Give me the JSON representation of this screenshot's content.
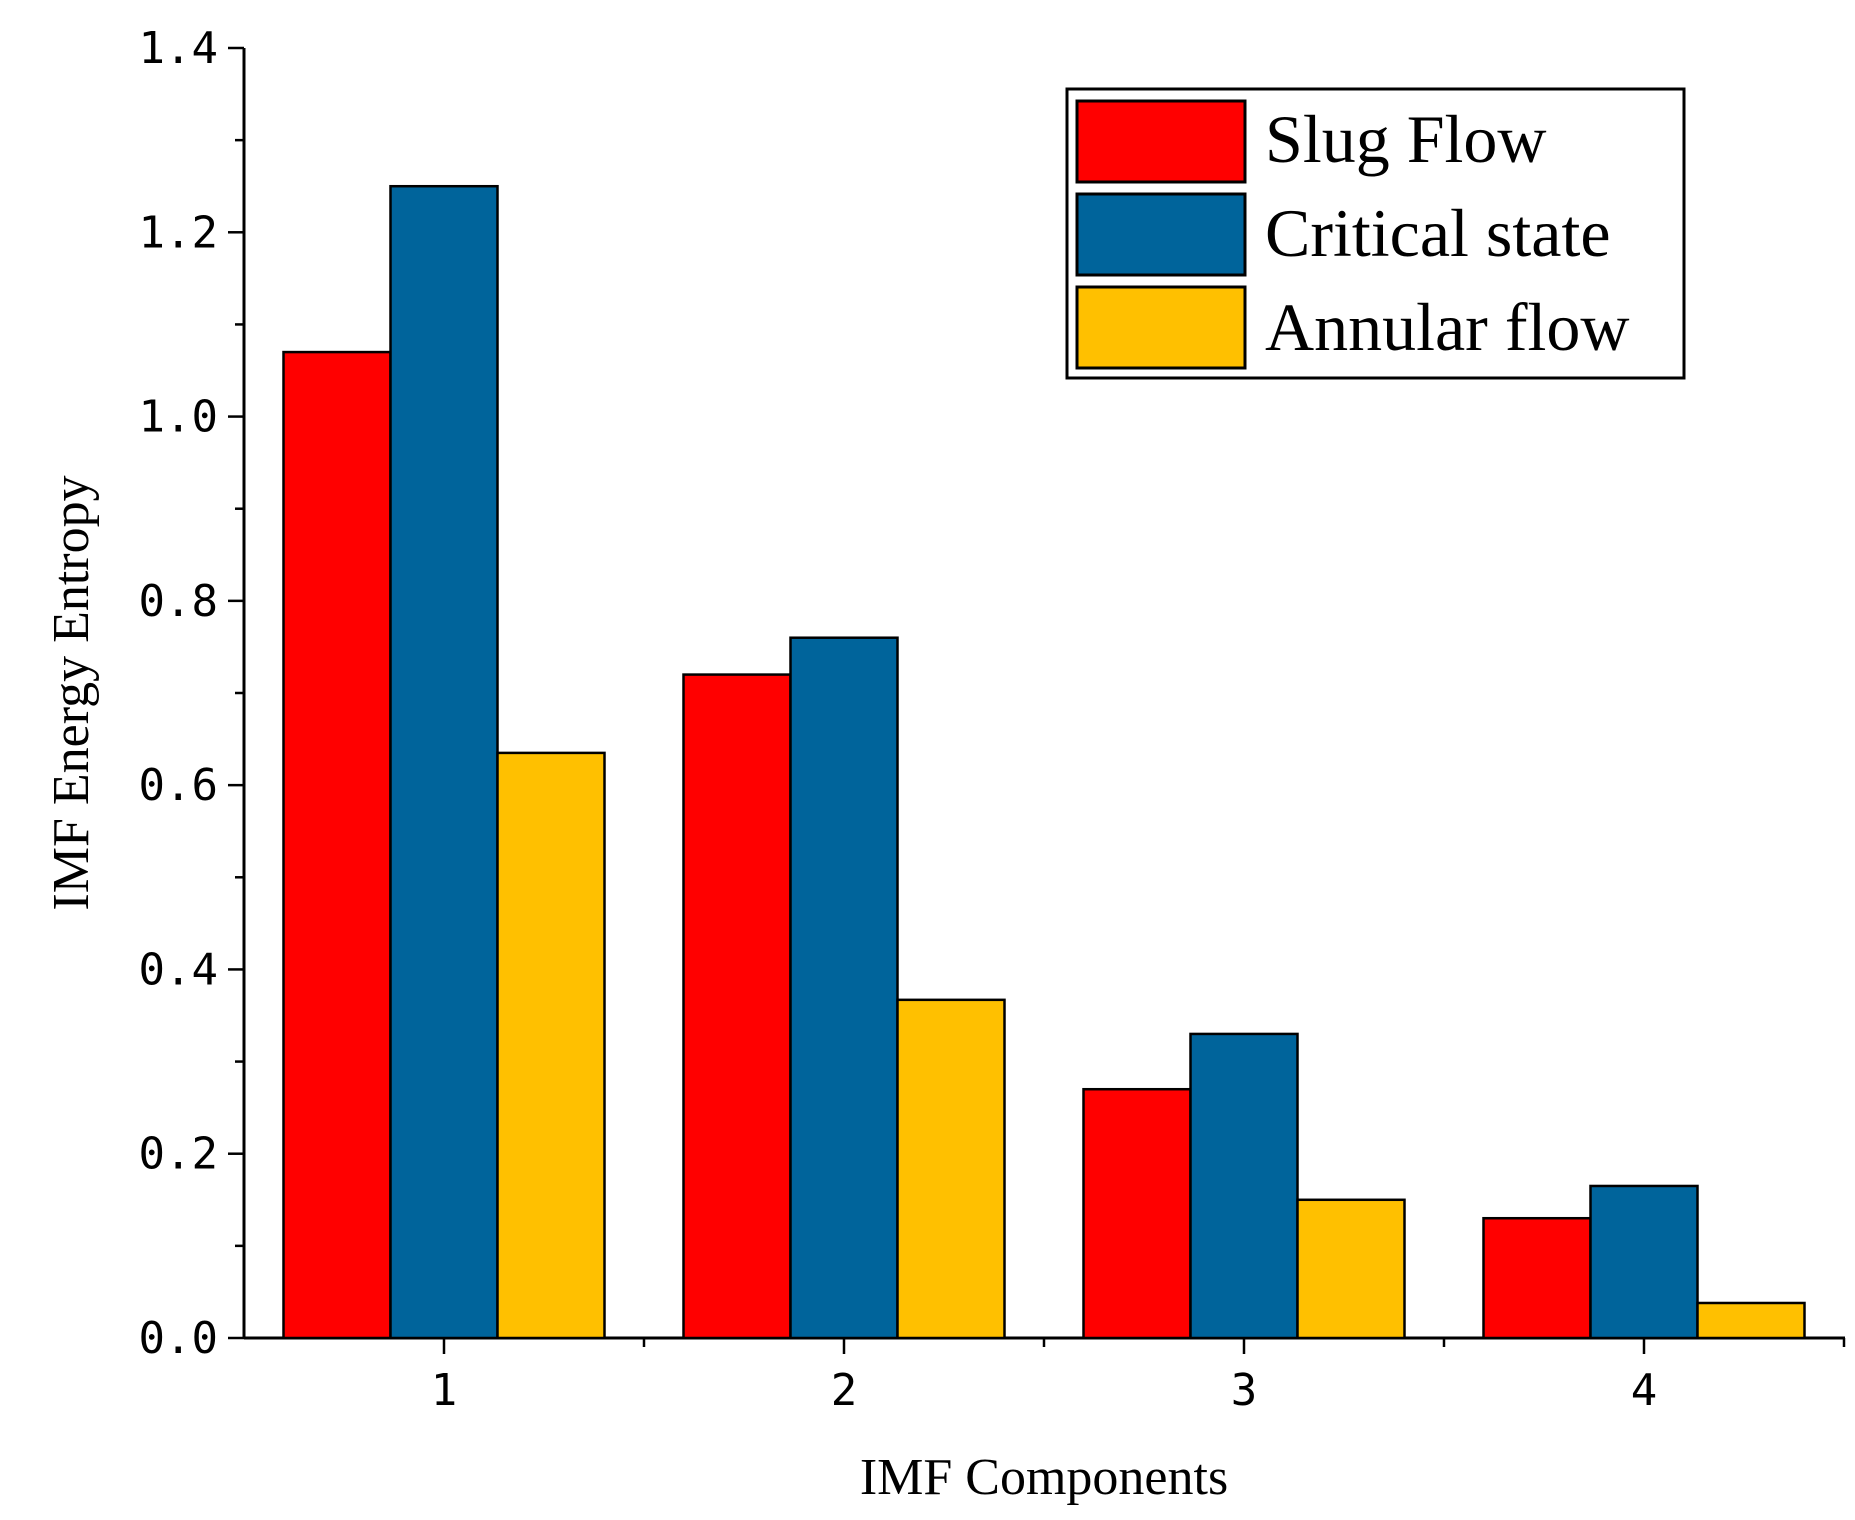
{
  "chart_data": {
    "type": "bar",
    "title": "",
    "xlabel": "IMF Components",
    "ylabel": "IMF Energy Entropy",
    "categories": [
      "1",
      "2",
      "3",
      "4"
    ],
    "ylim": [
      0,
      1.4
    ],
    "yticks": [
      "0.0",
      "0.2",
      "0.4",
      "0.6",
      "0.8",
      "1.0",
      "1.2",
      "1.4"
    ],
    "legend_position": "top-right",
    "grid": false,
    "series": [
      {
        "name": "Slug Flow",
        "color": "#ff0000",
        "values": [
          1.07,
          0.72,
          0.27,
          0.13
        ]
      },
      {
        "name": "Critical state",
        "color": "#00649b",
        "values": [
          1.25,
          0.76,
          0.33,
          0.165
        ]
      },
      {
        "name": "Annular flow",
        "color": "#ffc000",
        "values": [
          0.635,
          0.367,
          0.15,
          0.038
        ]
      }
    ]
  }
}
